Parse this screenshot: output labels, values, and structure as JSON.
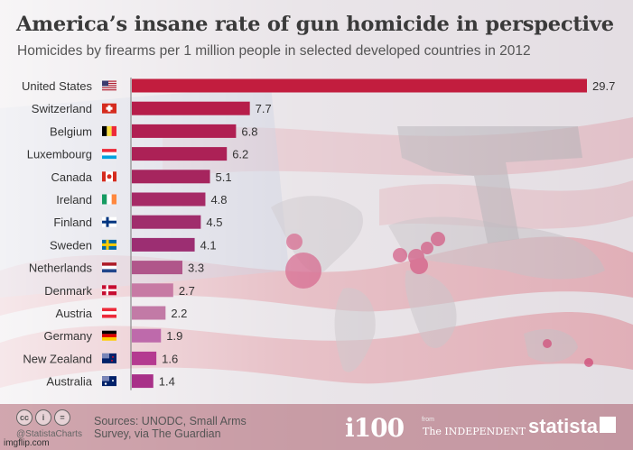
{
  "header": {
    "title": "America’s insane rate of gun homicide in perspective",
    "subtitle": "Homicides by firearms per 1 million people in selected developed countries in 2012"
  },
  "chart_data": {
    "type": "bar",
    "orientation": "horizontal",
    "title": "America’s insane rate of gun homicide in perspective",
    "subtitle": "Homicides by firearms per 1 million people in selected developed countries in 2012",
    "categories": [
      "United States",
      "Switzerland",
      "Belgium",
      "Luxembourg",
      "Canada",
      "Ireland",
      "Finland",
      "Sweden",
      "Netherlands",
      "Denmark",
      "Austria",
      "Germany",
      "New Zealand",
      "Australia"
    ],
    "values": [
      29.7,
      7.7,
      6.8,
      6.2,
      5.1,
      4.8,
      4.5,
      4.1,
      3.3,
      2.7,
      2.2,
      1.9,
      1.6,
      1.4
    ],
    "value_labels": [
      "29.7",
      "7.7",
      "6.8",
      "6.2",
      "5.1",
      "4.8",
      "4.5",
      "4.1",
      "3.3",
      "2.7",
      "2.2",
      "1.9",
      "1.6",
      "1.4"
    ],
    "flags": [
      "us-flag-icon",
      "swiss-flag-icon",
      "belgian-flag-icon",
      "luxembourg-flag-icon",
      "canadian-flag-icon",
      "irish-flag-icon",
      "finnish-flag-icon",
      "swedish-flag-icon",
      "dutch-flag-icon",
      "danish-flag-icon",
      "austrian-flag-icon",
      "german-flag-icon",
      "new-zealand-flag-icon",
      "australian-flag-icon"
    ],
    "bar_colors": [
      "#c21d3e",
      "#b61d4a",
      "#b01f52",
      "#ac2156",
      "#a6255e",
      "#a62a66",
      "#a02d6c",
      "#9c2e72",
      "#b0568a",
      "#c77aa4",
      "#c27aa6",
      "#be6aab",
      "#b43a90",
      "#a83088"
    ],
    "xlim": [
      0,
      29.7
    ],
    "legend": "none",
    "grid": false
  },
  "footer": {
    "cc_icons": [
      "cc",
      "i",
      "="
    ],
    "statista_handle": "@StatistaCharts",
    "sources_line1": "Sources: UNODC, Small Arms",
    "sources_line2": "Survey, via The Guardian",
    "i100": "i100",
    "from": "from",
    "independent": "The INDEPENDENT",
    "statista": "statista",
    "imgflip": "imgflip.com"
  }
}
